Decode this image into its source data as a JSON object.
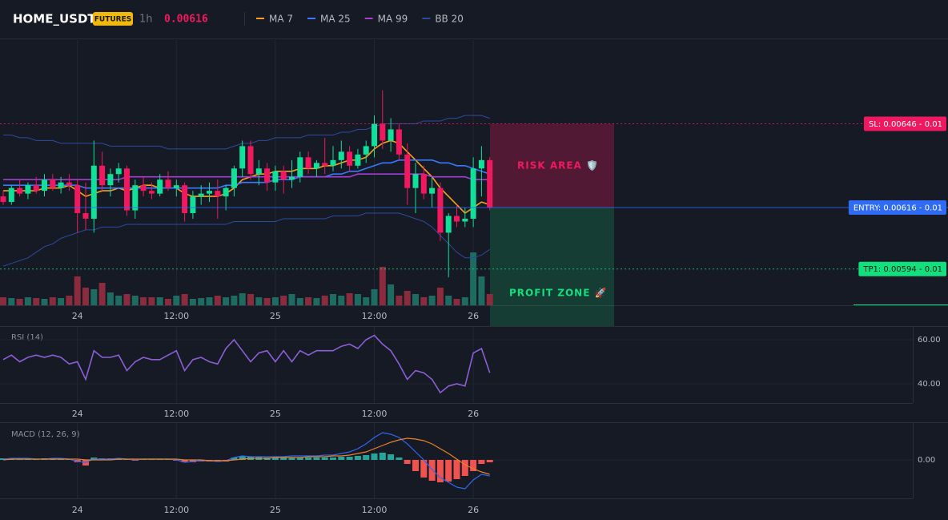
{
  "header": {
    "symbol": "HOME_USDT",
    "badge": "FUTURES",
    "interval": "1h",
    "price": "0.00616"
  },
  "chart_data": [
    {
      "type": "candlestick",
      "categories": [
        null,
        null,
        null,
        null,
        null,
        null,
        null,
        null,
        null,
        "24",
        null,
        null,
        null,
        null,
        null,
        null,
        null,
        null,
        null,
        null,
        null,
        "12:00",
        null,
        null,
        null,
        null,
        null,
        null,
        null,
        null,
        null,
        null,
        null,
        "25",
        null,
        null,
        null,
        null,
        null,
        null,
        null,
        null,
        null,
        null,
        null,
        "12:00",
        null,
        null,
        null,
        null,
        null,
        null,
        null,
        null,
        null,
        null,
        null,
        "26",
        null,
        null
      ],
      "open": [
        0.0062,
        0.00618,
        0.00623,
        0.00621,
        0.00624,
        0.00622,
        0.00626,
        0.00623,
        0.00625,
        0.00624,
        0.00614,
        0.00612,
        0.00631,
        0.00624,
        0.00628,
        0.0063,
        0.00615,
        0.00624,
        0.00622,
        0.00621,
        0.00626,
        0.00623,
        0.00624,
        0.00614,
        0.0062,
        0.00621,
        0.00622,
        0.0062,
        0.00623,
        0.0063,
        0.00638,
        0.00628,
        0.0063,
        0.00625,
        0.00629,
        0.00626,
        0.00627,
        0.00634,
        0.0063,
        0.00632,
        0.00631,
        0.00633,
        0.00636,
        0.00631,
        0.00635,
        0.00638,
        0.00646,
        0.0064,
        0.00644,
        0.00635,
        0.00623,
        0.00628,
        0.00621,
        0.00623,
        0.00607,
        0.00613,
        0.00611,
        0.00612,
        0.0063,
        0.00633
      ],
      "high": [
        0.00622,
        0.00624,
        0.00626,
        0.00625,
        0.00627,
        0.00628,
        0.00628,
        0.00627,
        0.00628,
        0.00626,
        0.00625,
        0.0064,
        0.00636,
        0.0063,
        0.00632,
        0.00631,
        0.00626,
        0.00627,
        0.00625,
        0.00628,
        0.00629,
        0.00626,
        0.00625,
        0.00622,
        0.00624,
        0.00625,
        0.00626,
        0.00624,
        0.00631,
        0.0064,
        0.0064,
        0.00633,
        0.00632,
        0.00631,
        0.00631,
        0.00633,
        0.00636,
        0.00636,
        0.00633,
        0.00641,
        0.00638,
        0.0064,
        0.00638,
        0.00637,
        0.0064,
        0.00649,
        0.00658,
        0.00648,
        0.00646,
        0.00639,
        0.00632,
        0.00631,
        0.00627,
        0.00625,
        0.00614,
        0.00617,
        0.00616,
        0.00634,
        0.00638,
        0.00634
      ],
      "low": [
        0.00617,
        0.00617,
        0.0062,
        0.00619,
        0.00621,
        0.0062,
        0.00622,
        0.00621,
        0.00622,
        0.00607,
        0.00608,
        0.00607,
        0.00622,
        0.0062,
        0.00625,
        0.00613,
        0.00612,
        0.0062,
        0.00619,
        0.0062,
        0.00622,
        0.0062,
        0.00611,
        0.00612,
        0.00617,
        0.00618,
        0.00612,
        0.00615,
        0.0062,
        0.00627,
        0.00626,
        0.00624,
        0.00622,
        0.00622,
        0.00621,
        0.00623,
        0.00625,
        0.00628,
        0.00627,
        0.00628,
        0.00629,
        0.0063,
        0.00629,
        0.0063,
        0.00632,
        0.00634,
        0.00637,
        0.00636,
        0.00633,
        0.00617,
        0.00614,
        0.00619,
        0.00616,
        0.00604,
        0.00591,
        0.00609,
        0.00609,
        0.00609,
        0.0062,
        0.00615
      ],
      "close": [
        0.00618,
        0.00623,
        0.00621,
        0.00624,
        0.00622,
        0.00626,
        0.00623,
        0.00625,
        0.00624,
        0.00614,
        0.00612,
        0.00631,
        0.00624,
        0.00628,
        0.0063,
        0.00615,
        0.00624,
        0.00622,
        0.00621,
        0.00626,
        0.00623,
        0.00624,
        0.00614,
        0.0062,
        0.00621,
        0.00622,
        0.0062,
        0.00623,
        0.0063,
        0.00638,
        0.00628,
        0.0063,
        0.00625,
        0.00629,
        0.00626,
        0.00627,
        0.00634,
        0.0063,
        0.00632,
        0.00631,
        0.00633,
        0.00636,
        0.00631,
        0.00635,
        0.00638,
        0.00646,
        0.0064,
        0.00644,
        0.00635,
        0.00623,
        0.00628,
        0.00621,
        0.00623,
        0.00607,
        0.00613,
        0.00611,
        0.00612,
        0.0063,
        0.00633,
        0.00616
      ],
      "volume": [
        10,
        9,
        8,
        10,
        9,
        8,
        10,
        9,
        12,
        36,
        22,
        20,
        28,
        16,
        12,
        14,
        12,
        10,
        10,
        10,
        8,
        12,
        14,
        8,
        9,
        10,
        12,
        10,
        12,
        15,
        14,
        10,
        9,
        10,
        12,
        14,
        9,
        10,
        9,
        12,
        14,
        12,
        15,
        14,
        10,
        20,
        48,
        26,
        12,
        18,
        14,
        10,
        12,
        22,
        12,
        8,
        10,
        66,
        36,
        14
      ],
      "up_color": "#12e09a",
      "down_color": "#f0195f",
      "volume_up_color": "#1d6b61",
      "volume_down_color": "#8a2c3e",
      "ylim": [
        0.00581,
        0.00676
      ],
      "series": [
        {
          "name": "MA 7",
          "color": "#f7a21b",
          "values": [
            0.00622,
            0.00622,
            0.00622,
            0.00622,
            0.00622,
            0.00623,
            0.00623,
            0.00623,
            0.00624,
            0.00622,
            0.0062,
            0.00621,
            0.00622,
            0.00622,
            0.00623,
            0.00622,
            0.00623,
            0.00624,
            0.00624,
            0.00623,
            0.00623,
            0.00623,
            0.00621,
            0.0062,
            0.0062,
            0.0062,
            0.0062,
            0.00621,
            0.00623,
            0.00626,
            0.00627,
            0.00628,
            0.00628,
            0.00629,
            0.00629,
            0.00629,
            0.0063,
            0.0063,
            0.0063,
            0.00631,
            0.00631,
            0.00632,
            0.00633,
            0.00633,
            0.00634,
            0.00637,
            0.00639,
            0.0064,
            0.00639,
            0.00636,
            0.00633,
            0.0063,
            0.00627,
            0.00623,
            0.0062,
            0.00617,
            0.00614,
            0.00616,
            0.00618,
            0.00617
          ]
        },
        {
          "name": "MA 25",
          "color": "#3b78ff",
          "values": [
            0.00624,
            0.00624,
            0.00624,
            0.00624,
            0.00624,
            0.00624,
            0.00624,
            0.00624,
            0.00624,
            0.00624,
            0.00623,
            0.00623,
            0.00623,
            0.00623,
            0.00623,
            0.00623,
            0.00623,
            0.00623,
            0.00623,
            0.00623,
            0.00623,
            0.00623,
            0.00623,
            0.00623,
            0.00623,
            0.00623,
            0.00623,
            0.00624,
            0.00624,
            0.00625,
            0.00625,
            0.00625,
            0.00625,
            0.00626,
            0.00626,
            0.00626,
            0.00627,
            0.00627,
            0.00627,
            0.00627,
            0.00628,
            0.00628,
            0.00629,
            0.00629,
            0.0063,
            0.00631,
            0.00632,
            0.00632,
            0.00633,
            0.00633,
            0.00633,
            0.00633,
            0.00633,
            0.00632,
            0.00632,
            0.00631,
            0.00631,
            0.0063,
            0.00629,
            0.00628
          ]
        },
        {
          "name": "MA 99",
          "color": "#a23fd1",
          "values": [
            0.00626,
            0.00626,
            0.00626,
            0.00626,
            0.00626,
            0.00626,
            0.00626,
            0.00626,
            0.00626,
            0.00626,
            0.00626,
            0.00626,
            0.00626,
            0.00626,
            0.00626,
            0.00627,
            0.00627,
            0.00627,
            0.00627,
            0.00627,
            0.00627,
            0.00627,
            0.00627,
            0.00627,
            0.00627,
            0.00627,
            0.00627,
            0.00627,
            0.00627,
            0.00627,
            0.00627,
            0.00627,
            0.00627,
            0.00627,
            0.00627,
            0.00627,
            0.00627,
            0.00627,
            0.00627,
            0.00627,
            0.00627,
            0.00627,
            0.00627,
            0.00628,
            0.00628,
            0.00628,
            0.00628,
            0.00628,
            0.00628,
            0.00628,
            0.00628,
            0.00628,
            0.00627,
            0.00627,
            0.00627,
            0.00627,
            0.00627,
            0.00626,
            0.00626,
            0.00626
          ]
        },
        {
          "name": "BB 20",
          "color": "#2d4a9e",
          "upper": [
            0.00642,
            0.00642,
            0.00641,
            0.00641,
            0.0064,
            0.0064,
            0.0064,
            0.00639,
            0.00639,
            0.00639,
            0.00639,
            0.00639,
            0.00639,
            0.00638,
            0.00638,
            0.00638,
            0.00638,
            0.00638,
            0.00638,
            0.00638,
            0.00637,
            0.00637,
            0.00637,
            0.00637,
            0.00637,
            0.00637,
            0.00637,
            0.00637,
            0.00638,
            0.00639,
            0.00639,
            0.0064,
            0.0064,
            0.00641,
            0.00641,
            0.00641,
            0.00641,
            0.00642,
            0.00642,
            0.00642,
            0.00642,
            0.00643,
            0.00643,
            0.00644,
            0.00644,
            0.00645,
            0.00646,
            0.00646,
            0.00646,
            0.00646,
            0.00646,
            0.00647,
            0.00647,
            0.00647,
            0.00648,
            0.00648,
            0.00649,
            0.00649,
            0.00649,
            0.00648
          ],
          "lower": [
            0.00595,
            0.00596,
            0.00597,
            0.00598,
            0.006,
            0.00602,
            0.00603,
            0.00605,
            0.00606,
            0.00607,
            0.00608,
            0.00608,
            0.00609,
            0.00609,
            0.00609,
            0.0061,
            0.0061,
            0.0061,
            0.0061,
            0.0061,
            0.0061,
            0.0061,
            0.0061,
            0.0061,
            0.0061,
            0.0061,
            0.0061,
            0.0061,
            0.00611,
            0.00611,
            0.00611,
            0.00611,
            0.00611,
            0.00611,
            0.00612,
            0.00612,
            0.00612,
            0.00612,
            0.00612,
            0.00612,
            0.00613,
            0.00613,
            0.00613,
            0.00613,
            0.00614,
            0.00614,
            0.00614,
            0.00614,
            0.00614,
            0.00613,
            0.00612,
            0.00611,
            0.00609,
            0.00606,
            0.00603,
            0.006,
            0.00598,
            0.00598,
            0.00599,
            0.00601
          ]
        }
      ],
      "levels": [
        {
          "label": "SL: 0.00646 - 0.01",
          "value": 0.00646,
          "color": "#f0195f"
        },
        {
          "label": "ENTRY: 0.00616 - 0.01",
          "value": 0.00616,
          "color": "#2f6bf5"
        },
        {
          "label": "TP1: 0.00594 - 0.01",
          "value": 0.00594,
          "color": "#12e07f"
        }
      ],
      "zones": [
        {
          "label": "RISK AREA 🛡️",
          "color": "#f0195f"
        },
        {
          "label": "PROFIT ZONE 🚀",
          "color": "#12e07f"
        }
      ]
    },
    {
      "type": "line",
      "title": "RSI (14)",
      "color": "#8b5fd6",
      "values": [
        51,
        53,
        50,
        52,
        53,
        52,
        53,
        52,
        49,
        50,
        42,
        55,
        52,
        52,
        53,
        46,
        50,
        52,
        51,
        51,
        53,
        55,
        46,
        51,
        52,
        50,
        49,
        56,
        60,
        55,
        50,
        54,
        55,
        50,
        55,
        50,
        55,
        53,
        55,
        55,
        55,
        57,
        58,
        56,
        60,
        62,
        58,
        55,
        49,
        42,
        46,
        45,
        42,
        36,
        39,
        40,
        39,
        54,
        56,
        45
      ],
      "ylim": [
        31.3,
        65.8
      ],
      "yticks": [
        {
          "value": 60,
          "label": "60.00"
        },
        {
          "value": 40,
          "label": "40.00"
        }
      ]
    },
    {
      "type": "macd",
      "title": "MACD (12, 26, 9)",
      "line": {
        "color": "#3068f0",
        "values": [
          1e-06,
          2e-06,
          2e-06,
          2e-06,
          1e-06,
          1e-06,
          2e-06,
          2e-06,
          1e-06,
          -2e-06,
          -3e-06,
          1e-06,
          1e-06,
          1e-06,
          2e-06,
          1e-06,
          0,
          1e-06,
          1e-06,
          1e-06,
          1e-06,
          0,
          -3e-06,
          -2e-06,
          -1e-06,
          -1e-06,
          -2e-06,
          -1e-06,
          3e-06,
          5e-06,
          4e-06,
          4e-06,
          4e-06,
          4e-06,
          4e-06,
          5e-06,
          5e-06,
          5e-06,
          5e-06,
          6e-06,
          6e-06,
          8e-06,
          1e-05,
          1.4e-05,
          2e-05,
          2.8e-05,
          3.4e-05,
          3.2e-05,
          2.8e-05,
          2e-05,
          1e-05,
          0,
          -1.2e-05,
          -2.2e-05,
          -2.8e-05,
          -3.4e-05,
          -3.6e-05,
          -2.5e-05,
          -1.8e-05,
          -2e-05
        ]
      },
      "signal": {
        "color": "#e8822a",
        "values": [
          0,
          1e-06,
          1e-06,
          1e-06,
          1e-06,
          1e-06,
          1e-06,
          1e-06,
          1e-06,
          1e-06,
          0,
          0,
          0,
          0,
          1e-06,
          1e-06,
          1e-06,
          1e-06,
          1e-06,
          1e-06,
          1e-06,
          1e-06,
          0,
          0,
          0,
          -1e-06,
          -1e-06,
          -1e-06,
          0,
          1e-06,
          2e-06,
          2e-06,
          2e-06,
          3e-06,
          3e-06,
          3e-06,
          3e-06,
          4e-06,
          4e-06,
          4e-06,
          5e-06,
          5e-06,
          6e-06,
          8e-06,
          1e-05,
          1.4e-05,
          1.8e-05,
          2.2e-05,
          2.5e-05,
          2.7e-05,
          2.6e-05,
          2.4e-05,
          2e-05,
          1.4e-05,
          8e-06,
          1e-06,
          -6e-06,
          -1.1e-05,
          -1.5e-05,
          -1.8e-05
        ]
      },
      "histogram": {
        "up_color": "#26a69a",
        "down_color": "#ef5350",
        "values": [
          2e-06,
          1e-06,
          2e-06,
          2e-06,
          1e-06,
          2e-06,
          2e-06,
          1e-06,
          1e-06,
          -3e-06,
          -7e-06,
          3e-06,
          2e-06,
          2e-06,
          2e-06,
          1e-06,
          -1e-06,
          1e-06,
          1e-06,
          1e-06,
          1e-06,
          -1e-06,
          -3e-06,
          -3e-06,
          -2e-06,
          -2e-06,
          -2e-06,
          -2e-06,
          3e-06,
          5e-06,
          4e-06,
          4e-06,
          3e-06,
          3e-06,
          3e-06,
          3e-06,
          3e-06,
          3e-06,
          3e-06,
          3e-06,
          3e-06,
          4e-06,
          4e-06,
          5e-06,
          6e-06,
          8e-06,
          9e-06,
          7e-06,
          3e-06,
          -5e-06,
          -1.4e-05,
          -2.2e-05,
          -2.6e-05,
          -2.8e-05,
          -2.7e-05,
          -2.4e-05,
          -2e-05,
          -1.4e-05,
          -5e-06,
          -3e-06
        ]
      },
      "ylim": [
        -4.8e-05,
        4.6e-05
      ],
      "yticks": [
        {
          "value": 0,
          "label": "0.00"
        }
      ]
    }
  ]
}
